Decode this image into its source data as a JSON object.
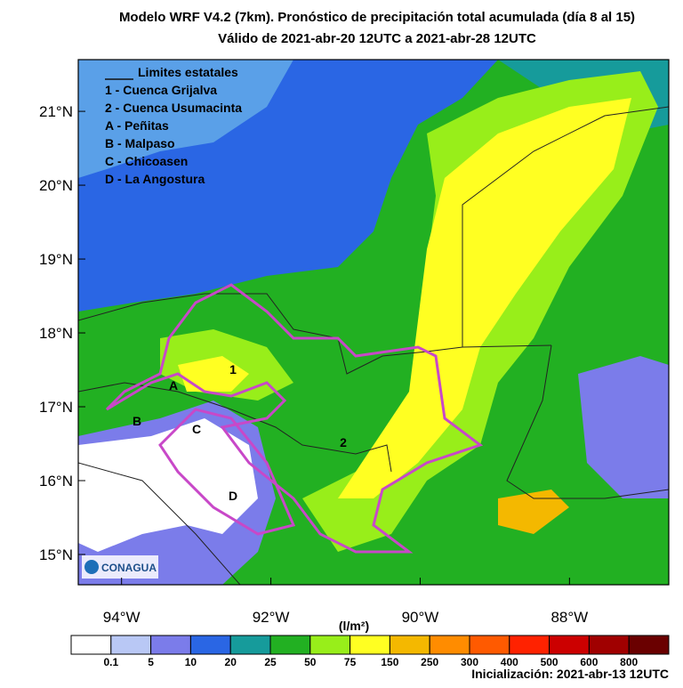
{
  "title": "Modelo WRF V4.2 (7km). Pronóstico de precipitación total acumulada (día 8 al 15)",
  "subtitle": "Válido de 2021-abr-20 12UTC a 2021-abr-28 12UTC",
  "map": {
    "lonlim": [
      -94.58,
      -86.67
    ],
    "latlim": [
      14.59,
      21.7
    ],
    "lonticks": [
      {
        "value": -94,
        "label": "94°W"
      },
      {
        "value": -92,
        "label": "92°W"
      },
      {
        "value": -90,
        "label": "90°W"
      },
      {
        "value": -88,
        "label": "88°W"
      }
    ],
    "latticks": [
      {
        "value": 21,
        "label": "21°N"
      },
      {
        "value": 20,
        "label": "20°N"
      },
      {
        "value": 19,
        "label": "19°N"
      },
      {
        "value": 18,
        "label": "18°N"
      },
      {
        "value": 17,
        "label": "17°N"
      },
      {
        "value": 16,
        "label": "16°N"
      },
      {
        "value": 15,
        "label": "15°N"
      }
    ],
    "legend": [
      "Limites estatales",
      "1 - Cuenca Grijalva",
      "2 - Cuenca Usumacinta",
      "A - Peñitas",
      "B - Malpaso",
      "C - Chicoasen",
      "D - La Angostura"
    ],
    "labels": [
      "1",
      "2",
      "A",
      "B",
      "C",
      "D"
    ],
    "logo": "CONAGUA"
  },
  "colorbar": {
    "title": "(l/m²)",
    "colors": [
      "#ffffff",
      "#b9c8f5",
      "#7b7cea",
      "#2a66e4",
      "#169b9b",
      "#22b022",
      "#98ee1a",
      "#ffff22",
      "#f4b800",
      "#ff8c00",
      "#ff5a00",
      "#ff2200",
      "#cc0000",
      "#a00000",
      "#6a0000"
    ],
    "ticks": [
      "0.1",
      "5",
      "10",
      "20",
      "25",
      "50",
      "75",
      "150",
      "250",
      "300",
      "400",
      "500",
      "600",
      "800"
    ]
  },
  "footer": "Inicialización: 2021-abr-13 12UTC"
}
